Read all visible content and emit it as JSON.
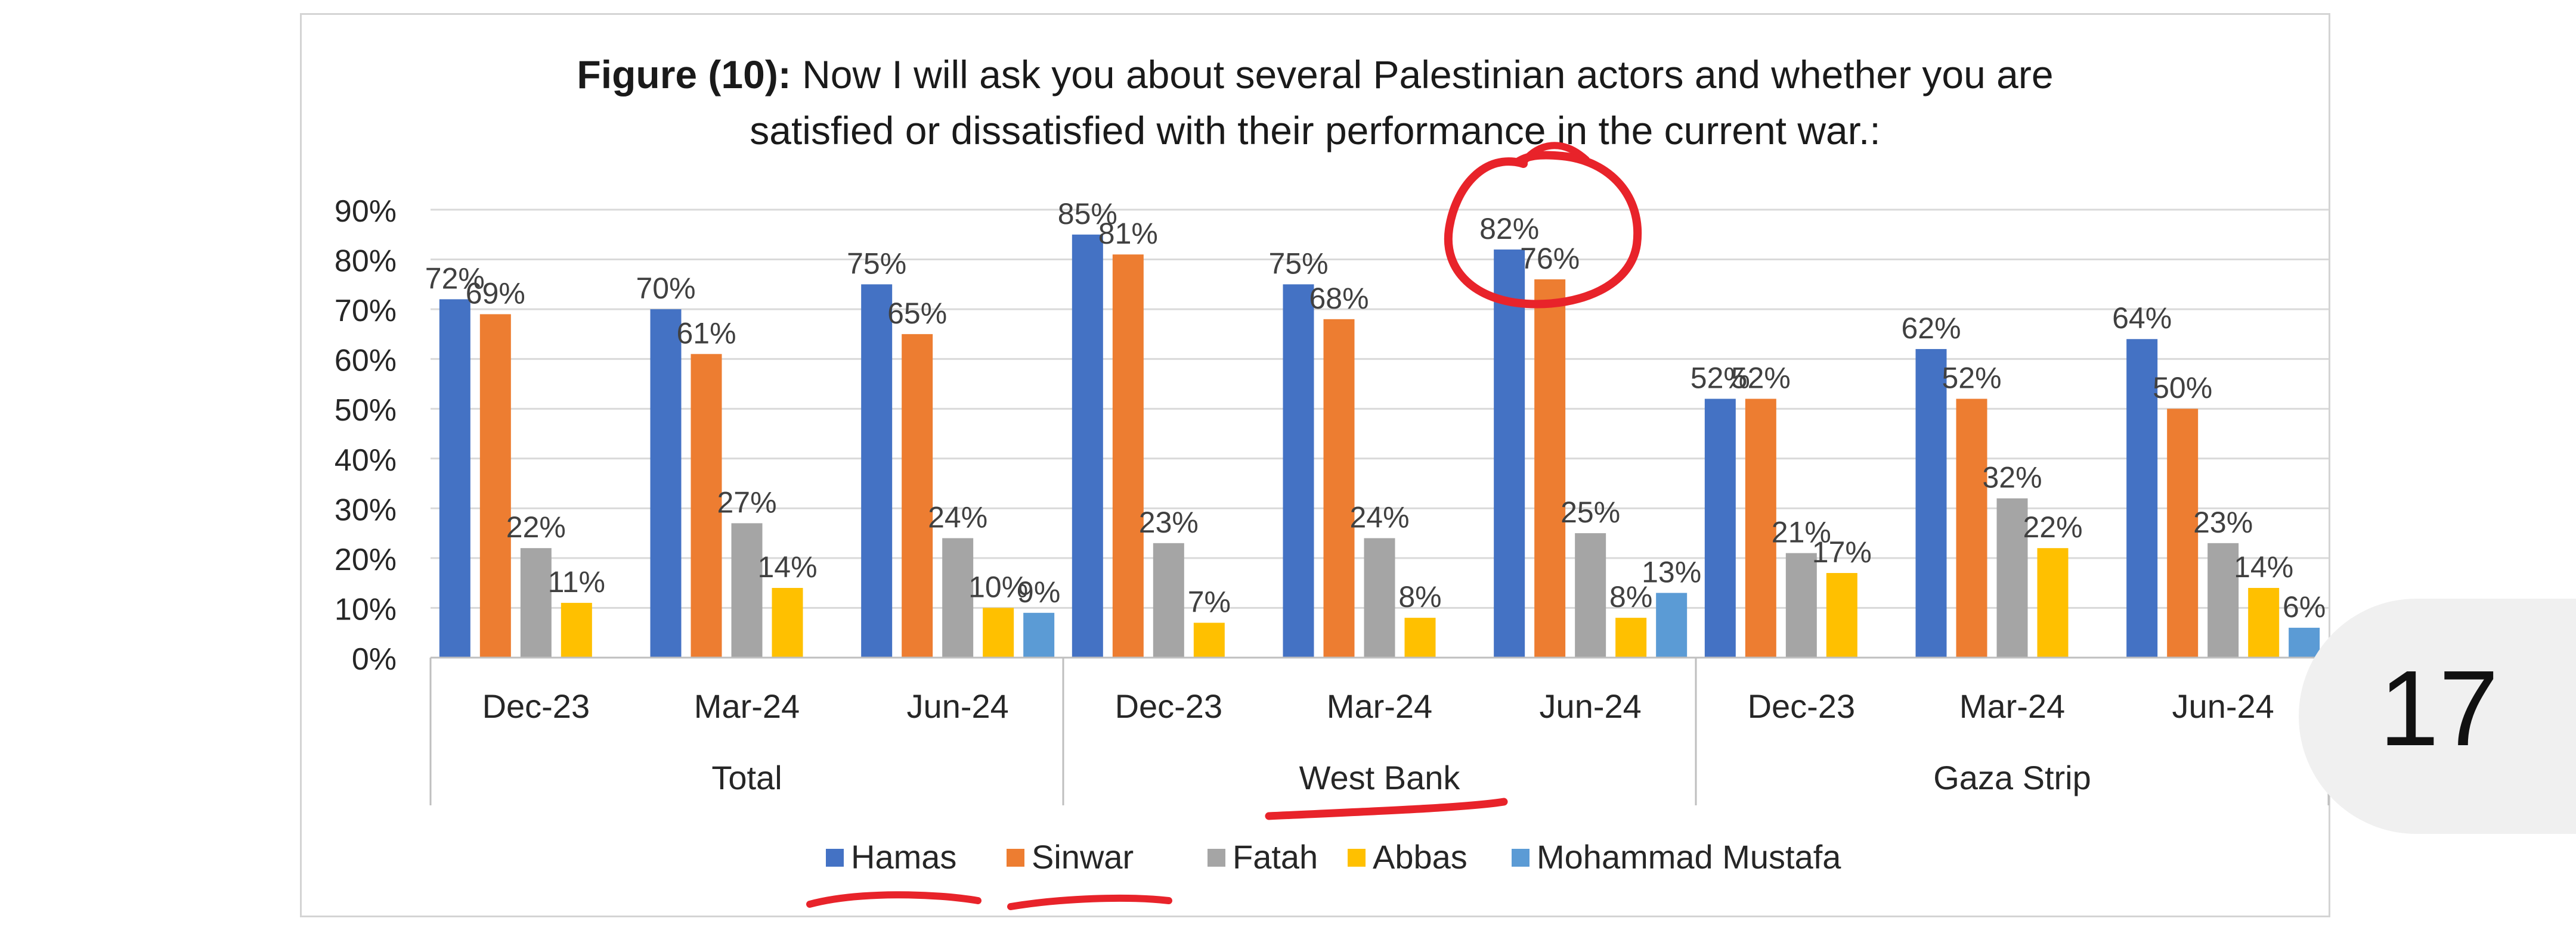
{
  "title": {
    "prefix": "Figure (10):",
    "line1": " Now I will ask you about several Palestinian actors and whether you are",
    "line2": "satisfied or dissatisfied with their performance in the current war.:"
  },
  "page_number": "17",
  "colors": {
    "Hamas": "#4472C4",
    "Sinwar": "#ED7D31",
    "Fatah": "#A5A5A5",
    "Abbas": "#FFC000",
    "Mohammad Mustafa": "#5B9BD5",
    "annotation": "#e8232a"
  },
  "chart_data": {
    "type": "bar",
    "title": "Figure (10): Now I will ask you about several Palestinian actors and whether you are satisfied or dissatisfied with their performance in the current war.:",
    "ylim": [
      0,
      90
    ],
    "yticks": [
      "0%",
      "10%",
      "20%",
      "30%",
      "40%",
      "50%",
      "60%",
      "70%",
      "80%",
      "90%"
    ],
    "grid": true,
    "legend_position": "bottom",
    "groups": [
      "Total",
      "West Bank",
      "Gaza Strip"
    ],
    "categories": [
      "Dec-23",
      "Mar-24",
      "Jun-24",
      "Dec-23",
      "Mar-24",
      "Jun-24",
      "Dec-23",
      "Mar-24",
      "Jun-24"
    ],
    "series": [
      {
        "name": "Hamas",
        "values": [
          72,
          70,
          75,
          85,
          75,
          82,
          52,
          62,
          64
        ]
      },
      {
        "name": "Sinwar",
        "values": [
          69,
          61,
          65,
          81,
          68,
          76,
          52,
          52,
          50
        ]
      },
      {
        "name": "Fatah",
        "values": [
          22,
          27,
          24,
          23,
          24,
          25,
          21,
          32,
          23
        ]
      },
      {
        "name": "Abbas",
        "values": [
          11,
          14,
          10,
          7,
          8,
          8,
          17,
          22,
          14
        ]
      },
      {
        "name": "Mohammad Mustafa",
        "values": [
          null,
          null,
          9,
          null,
          null,
          13,
          null,
          null,
          6
        ]
      }
    ]
  }
}
